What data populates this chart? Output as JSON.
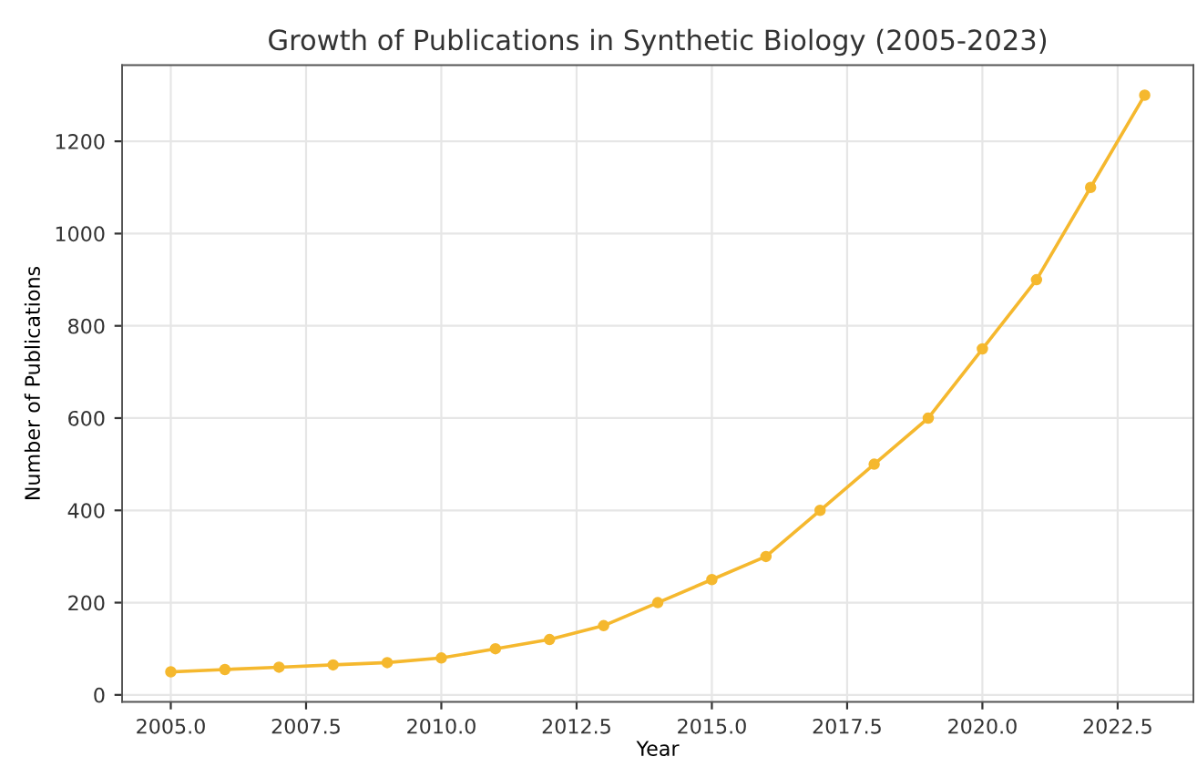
{
  "chart_data": {
    "type": "line",
    "title": "Growth of Publications in Synthetic Biology (2005-2023)",
    "xlabel": "Year",
    "ylabel": "Number of Publications",
    "x": [
      2005,
      2006,
      2007,
      2008,
      2009,
      2010,
      2011,
      2012,
      2013,
      2014,
      2015,
      2016,
      2017,
      2018,
      2019,
      2020,
      2021,
      2022,
      2023
    ],
    "series": [
      {
        "color": "#f5b82e",
        "values": [
          50,
          55,
          60,
          65,
          70,
          80,
          100,
          120,
          150,
          200,
          250,
          300,
          400,
          500,
          600,
          750,
          900,
          1100,
          1300
        ]
      }
    ],
    "xlim": [
      2004.1,
      2023.9
    ],
    "ylim": [
      -15,
      1365
    ],
    "xticks": [
      {
        "value": 2005,
        "label": "2005.0"
      },
      2007.5,
      {
        "value": 2010,
        "label": "2010.0"
      },
      2012.5,
      {
        "value": 2015,
        "label": "2015.0"
      },
      2017.5,
      {
        "value": 2020,
        "label": "2020.0"
      },
      2022.5
    ],
    "yticks": [
      0,
      200,
      400,
      600,
      800,
      1000,
      1200
    ],
    "grid": true,
    "marker": "circle",
    "line_style": "solid"
  }
}
